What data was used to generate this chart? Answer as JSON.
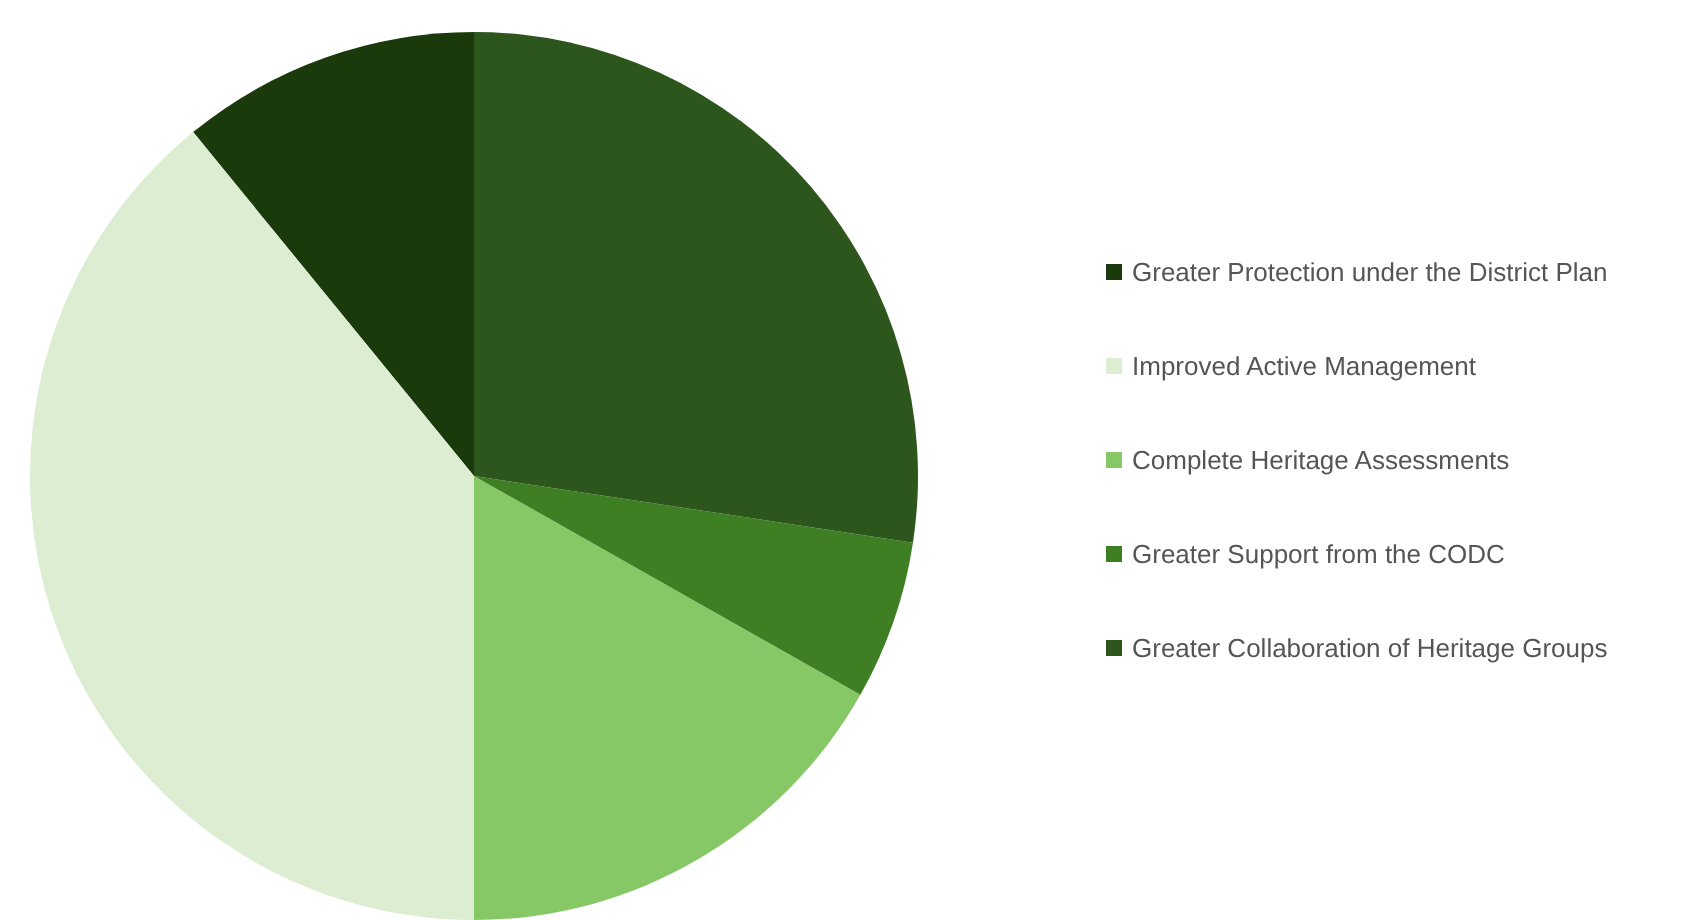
{
  "chart_data": {
    "type": "pie",
    "categories": [
      "Greater Protection under the District Plan",
      "Improved Active Management",
      "Complete Heritage Assessments",
      "Greater Support from the CODC",
      "Greater Collaboration of Heritage Groups"
    ],
    "values": [
      10.9,
      39.1,
      16.8,
      5.8,
      27.4
    ],
    "colors": [
      "#1a3a0c",
      "#dcedd2",
      "#86c866",
      "#3e7f24",
      "#2d561c"
    ],
    "legend": "right"
  }
}
